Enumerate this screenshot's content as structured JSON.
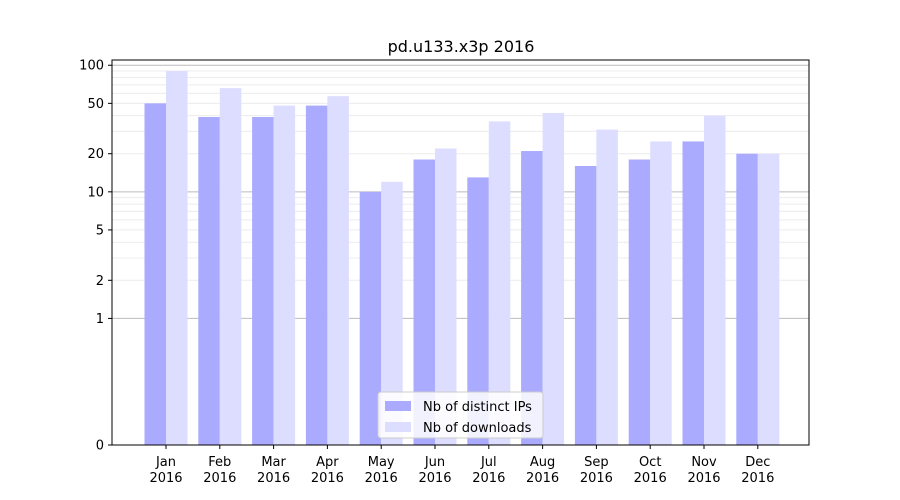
{
  "chart_data": {
    "type": "bar",
    "title": "pd.u133.x3p 2016",
    "xlabel": "",
    "ylabel": "",
    "y_scale": "symlog",
    "y_ticks": [
      0,
      1,
      2,
      5,
      10,
      20,
      50,
      100
    ],
    "y_tick_labels": [
      "0",
      "1",
      "2",
      "5",
      "10",
      "20",
      "50",
      "100"
    ],
    "ylim": [
      0,
      110
    ],
    "categories": [
      {
        "month": "Jan",
        "year": "2016"
      },
      {
        "month": "Feb",
        "year": "2016"
      },
      {
        "month": "Mar",
        "year": "2016"
      },
      {
        "month": "Apr",
        "year": "2016"
      },
      {
        "month": "May",
        "year": "2016"
      },
      {
        "month": "Jun",
        "year": "2016"
      },
      {
        "month": "Jul",
        "year": "2016"
      },
      {
        "month": "Aug",
        "year": "2016"
      },
      {
        "month": "Sep",
        "year": "2016"
      },
      {
        "month": "Oct",
        "year": "2016"
      },
      {
        "month": "Nov",
        "year": "2016"
      },
      {
        "month": "Dec",
        "year": "2016"
      }
    ],
    "series": [
      {
        "name": "Nb of distinct IPs",
        "color": "#aaaaff",
        "values": [
          50,
          39,
          39,
          48,
          10,
          18,
          13,
          21,
          16,
          18,
          25,
          20
        ]
      },
      {
        "name": "Nb of downloads",
        "color": "#ddddff",
        "values": [
          90,
          66,
          48,
          57,
          12,
          22,
          36,
          42,
          31,
          25,
          40,
          20
        ]
      }
    ],
    "legend_position": "bottom-center",
    "grid": true
  }
}
